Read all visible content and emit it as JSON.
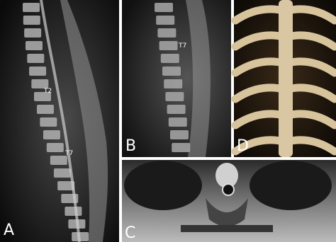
{
  "panels": [
    {
      "label": "A",
      "annotations": [
        "T2",
        "T7"
      ]
    },
    {
      "label": "B",
      "annotations": [
        "T7"
      ]
    },
    {
      "label": "C"
    },
    {
      "label": "D"
    }
  ]
}
